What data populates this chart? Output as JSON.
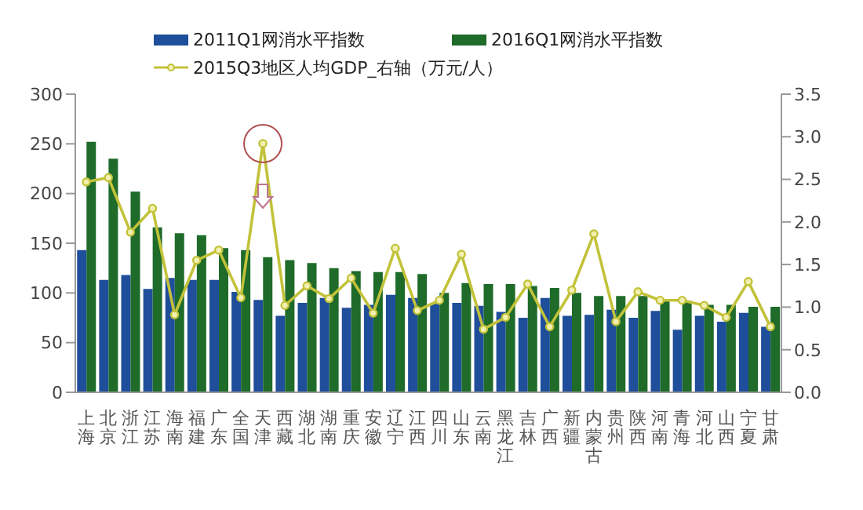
{
  "chart_data": {
    "type": "bar",
    "categories": [
      "上海",
      "北京",
      "浙江",
      "江苏",
      "海南",
      "福建",
      "广东",
      "全国",
      "天津",
      "西藏",
      "湖北",
      "湖南",
      "重庆",
      "安徽",
      "辽宁",
      "江西",
      "四川",
      "山东",
      "云南",
      "黑龙江",
      "吉林",
      "广西",
      "新疆",
      "内蒙古",
      "贵州",
      "陕西",
      "河南",
      "青海",
      "河北",
      "山西",
      "宁夏",
      "甘肃"
    ],
    "series": [
      {
        "name": "2011Q1网消水平指数",
        "color": "#1f4e9a",
        "values": [
          143,
          113,
          118,
          104,
          115,
          113,
          113,
          101,
          93,
          77,
          90,
          95,
          85,
          88,
          98,
          95,
          89,
          90,
          87,
          81,
          75,
          95,
          77,
          78,
          83,
          75,
          82,
          63,
          77,
          71,
          80,
          66
        ]
      },
      {
        "name": "2016Q1网消水平指数",
        "color": "#1e6b2a",
        "values": [
          252,
          235,
          202,
          166,
          160,
          158,
          145,
          143,
          136,
          133,
          130,
          125,
          122,
          121,
          121,
          119,
          100,
          110,
          109,
          109,
          107,
          105,
          100,
          97,
          97,
          97,
          94,
          92,
          88,
          88,
          86,
          86
        ]
      },
      {
        "name": "2015Q3地区人均GDP_右轴（万元/人）",
        "type": "line",
        "axis": "y2",
        "color": "#c2c23a",
        "values": [
          2.47,
          2.52,
          1.88,
          2.16,
          0.91,
          1.55,
          1.67,
          1.11,
          2.92,
          1.02,
          1.25,
          1.1,
          1.34,
          0.93,
          1.69,
          0.96,
          1.08,
          1.62,
          0.74,
          0.88,
          1.27,
          0.77,
          1.2,
          1.86,
          0.83,
          1.18,
          1.08,
          1.08,
          1.02,
          0.88,
          1.3,
          0.77
        ]
      }
    ],
    "ylim": [
      0,
      300
    ],
    "yticks": [
      0,
      50,
      100,
      150,
      200,
      250,
      300
    ],
    "y2lim": [
      0,
      3.5
    ],
    "y2ticks": [
      {
        "value": 0,
        "label": "0.0"
      },
      {
        "value": 0.5,
        "label": "0.5"
      },
      {
        "value": 1,
        "label": "1.0"
      },
      {
        "value": 1.5,
        "label": "1.5"
      },
      {
        "value": 2,
        "label": "2.0"
      },
      {
        "value": 2.5,
        "label": "2.5"
      },
      {
        "value": 3,
        "label": "3.0"
      },
      {
        "value": 3.5,
        "label": "3.5"
      }
    ],
    "legend": "top",
    "marker": "circle",
    "grid": false
  }
}
